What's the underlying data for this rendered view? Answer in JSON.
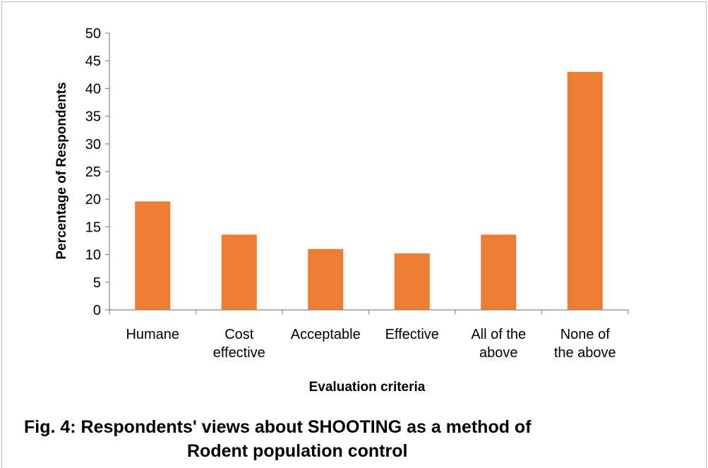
{
  "chart_data": {
    "type": "bar",
    "categories": [
      [
        "Humane"
      ],
      [
        "Cost",
        "effective"
      ],
      [
        "Acceptable"
      ],
      [
        "Effective"
      ],
      [
        "All of the",
        "above"
      ],
      [
        "None of",
        "the above"
      ]
    ],
    "values": [
      19.6,
      13.6,
      11.0,
      10.2,
      13.6,
      43.0
    ],
    "xlabel": "Evaluation criteria",
    "ylabel": "Percentage of Respondents",
    "ylim": [
      0,
      50
    ],
    "yticks": [
      0,
      5,
      10,
      15,
      20,
      25,
      30,
      35,
      40,
      45,
      50
    ],
    "bar_color": "#ED7D31",
    "grid": false,
    "legend": "none"
  },
  "caption": {
    "line1": "Fig. 4: Respondents' views about SHOOTING as a method of",
    "line2": "Rodent population control"
  }
}
